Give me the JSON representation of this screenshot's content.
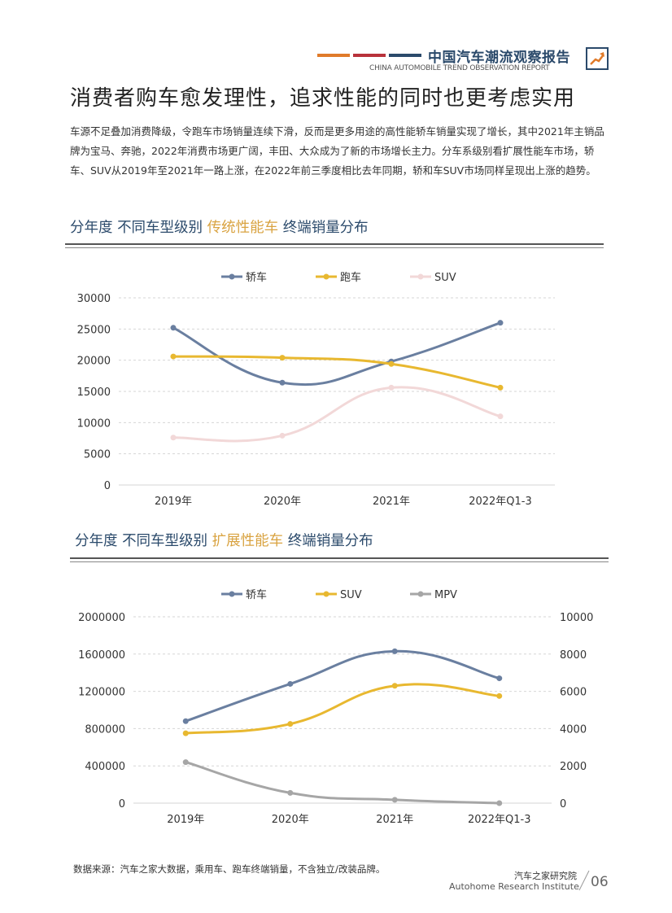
{
  "header": {
    "report_title": "中国汽车潮流观察报告",
    "report_subtitle": "CHINA AUTOMOBILE TREND OBSERVATION REPORT",
    "bar_colors": [
      "#e07b2a",
      "#b8323b",
      "#2b4a6b"
    ]
  },
  "page": {
    "title": "消费者购车愈发理性，追求性能的同时也更考虑实用",
    "intro": "车源不足叠加消费降级，令跑车市场销量连续下滑，反而是更多用途的高性能轿车销量实现了增长，其中2021年主销品牌为宝马、奔驰，2022年消费市场更广阔，丰田、大众成为了新的市场增长主力。分车系级别看扩展性能车市场，轿车、SUV从2019年至2021年一路上涨，在2022年前三季度相比去年同期，轿和车SUV市场同样呈现出上涨的趋势。"
  },
  "section1": {
    "title_pre": "分年度  不同车型级别 ",
    "title_highlight": "传统性能车",
    "title_post": " 终端销量分布"
  },
  "section2": {
    "title_pre": "分年度  不同车型级别 ",
    "title_highlight": "扩展性能车",
    "title_post": " 终端销量分布"
  },
  "chart_data": [
    {
      "type": "line",
      "title": "分年度 不同车型级别 传统性能车 终端销量分布",
      "categories": [
        "2019年",
        "2020年",
        "2021年",
        "2022年Q1-3"
      ],
      "ylim": [
        0,
        30000
      ],
      "yticks": [
        0,
        5000,
        10000,
        15000,
        20000,
        25000,
        30000
      ],
      "series": [
        {
          "name": "轿车",
          "values": [
            25200,
            16400,
            19800,
            26000
          ],
          "color": "#6a7fa0"
        },
        {
          "name": "跑车",
          "values": [
            20600,
            20400,
            19400,
            15600
          ],
          "color": "#e8b830"
        },
        {
          "name": "SUV",
          "values": [
            7600,
            7900,
            15600,
            11000
          ],
          "color": "#f2d8d8"
        }
      ],
      "legend": "top-center"
    },
    {
      "type": "line",
      "title": "分年度 不同车型级别 扩展性能车 终端销量分布",
      "categories": [
        "2019年",
        "2020年",
        "2021年",
        "2022年Q1-3"
      ],
      "ylim": [
        0,
        2000000
      ],
      "yticks": [
        0,
        400000,
        800000,
        1200000,
        1600000,
        2000000
      ],
      "y2lim": [
        0,
        10000
      ],
      "y2ticks": [
        0,
        2000,
        4000,
        6000,
        8000,
        10000
      ],
      "series": [
        {
          "name": "轿车",
          "values": [
            880000,
            1280000,
            1630000,
            1340000
          ],
          "color": "#6a7fa0",
          "axis": "left"
        },
        {
          "name": "SUV",
          "values": [
            750000,
            850000,
            1260000,
            1150000
          ],
          "color": "#e8b830",
          "axis": "left"
        },
        {
          "name": "MPV",
          "values": [
            2200,
            550,
            180,
            0
          ],
          "color": "#a6a6a6",
          "axis": "right"
        }
      ],
      "legend": "top-center"
    }
  ],
  "footer": {
    "source": "数据来源：汽车之家大数据，乘用车、跑车终端销量，不含独立/改装品牌。",
    "institute_cn": "汽车之家研究院",
    "institute_en": "Autohome Research Institute",
    "page_number": "06"
  }
}
